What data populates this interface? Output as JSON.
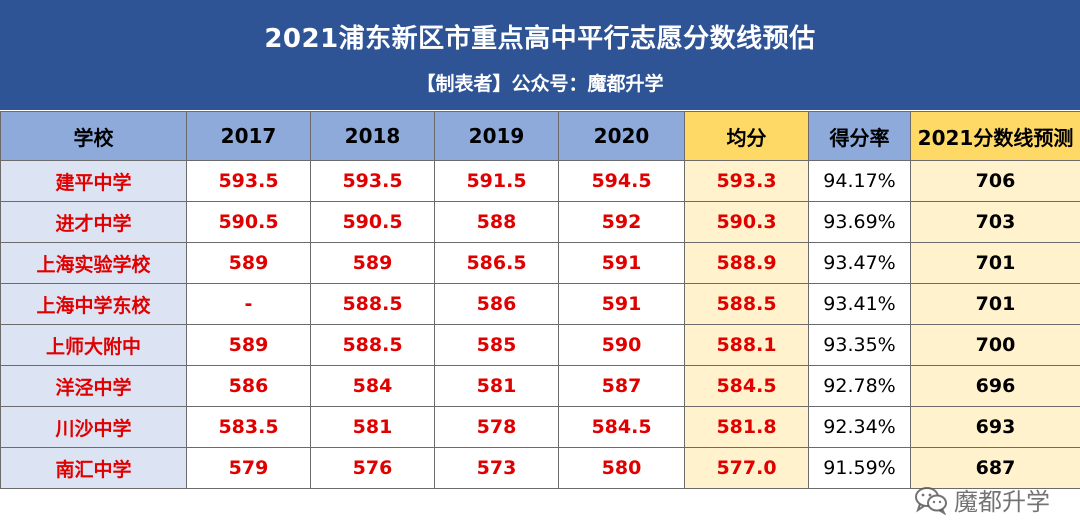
{
  "header": {
    "title": "2021浦东新区市重点高中平行志愿分数线预估",
    "subtitle": "【制表者】公众号：魔都升学"
  },
  "table": {
    "columns": [
      "学校",
      "2017",
      "2018",
      "2019",
      "2020",
      "均分",
      "得分率",
      "2021分数线预测"
    ],
    "rows": [
      [
        "建平中学",
        "593.5",
        "593.5",
        "591.5",
        "594.5",
        "593.3",
        "94.17%",
        "706"
      ],
      [
        "进才中学",
        "590.5",
        "590.5",
        "588",
        "592",
        "590.3",
        "93.69%",
        "703"
      ],
      [
        "上海实验学校",
        "589",
        "589",
        "586.5",
        "591",
        "588.9",
        "93.47%",
        "701"
      ],
      [
        "上海中学东校",
        "-",
        "588.5",
        "586",
        "591",
        "588.5",
        "93.41%",
        "701"
      ],
      [
        "上师大附中",
        "589",
        "588.5",
        "585",
        "590",
        "588.1",
        "93.35%",
        "700"
      ],
      [
        "洋泾中学",
        "586",
        "584",
        "581",
        "587",
        "584.5",
        "92.78%",
        "696"
      ],
      [
        "川沙中学",
        "583.5",
        "581",
        "578",
        "584.5",
        "581.8",
        "92.34%",
        "693"
      ],
      [
        "南汇中学",
        "579",
        "576",
        "573",
        "580",
        "577.0",
        "91.59%",
        "687"
      ]
    ]
  },
  "watermark": {
    "icon": "wechat-icon",
    "text": "魔都升学"
  },
  "colors": {
    "header_bg": "#2f5496",
    "column_header_bg": "#8eaadb",
    "highlight_header_bg": "#ffd966",
    "highlight_cell_bg": "#fff2cc",
    "school_cell_bg": "#dce3f3",
    "score_text": "#e00000"
  }
}
